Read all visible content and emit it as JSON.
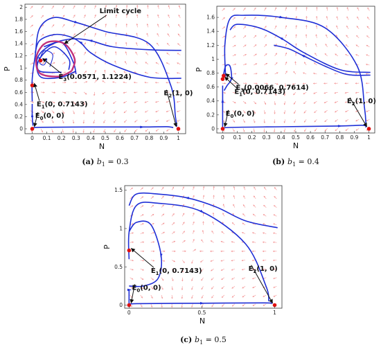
{
  "chart_data": [
    {
      "type": "phase-portrait",
      "caption": {
        "label": "(a)",
        "param": "b",
        "param_sub": "1",
        "value": "= 0.3"
      },
      "xlabel": "N",
      "ylabel": "P",
      "xlim": [
        -0.05,
        1.05
      ],
      "ylim": [
        -0.08,
        2.05
      ],
      "xticks": [
        "0",
        "0.1",
        "0.2",
        "0.3",
        "0.4",
        "0.5",
        "0.6",
        "0.7",
        "0.8",
        "0.9",
        "1"
      ],
      "xtick_values": [
        0,
        0.1,
        0.2,
        0.3,
        0.4,
        0.5,
        0.6,
        0.7,
        0.8,
        0.9,
        1.0
      ],
      "yticks": [
        "0",
        "0.2",
        "0.4",
        "0.6",
        "0.8",
        "1",
        "1.2",
        "1.4",
        "1.6",
        "1.8",
        "2"
      ],
      "ytick_values": [
        0,
        0.2,
        0.4,
        0.6,
        0.8,
        1.0,
        1.2,
        1.4,
        1.6,
        1.8,
        2.0
      ],
      "equilibria": [
        {
          "name": "E",
          "sub": "0",
          "coords": "(0, 0)",
          "x": 0,
          "y": 0
        },
        {
          "name": "E",
          "sub": "1",
          "coords": "(0, 0.7143)",
          "x": 0,
          "y": 0.7143
        },
        {
          "name": "E",
          "sub": "2",
          "coords": "(1, 0)",
          "x": 1,
          "y": 0
        },
        {
          "name": "E",
          "sub": "3",
          "coords": "(0.0571, 1.1224)",
          "x": 0.0571,
          "y": 1.1224
        }
      ],
      "limit_cycle_label": "Limit cycle",
      "trajectory_color": "#1f2fd6",
      "field_color": "#f28080",
      "cycle_color": "#c0307a",
      "point_color": "#e01010"
    },
    {
      "type": "phase-portrait",
      "caption": {
        "label": "(b)",
        "param": "b",
        "param_sub": "1",
        "value": "= 0.4"
      },
      "xlabel": "N",
      "ylabel": "P",
      "xlim": [
        -0.04,
        1.04
      ],
      "ylim": [
        -0.06,
        1.76
      ],
      "xticks": [
        "0",
        "0.1",
        "0.2",
        "0.3",
        "0.4",
        "0.5",
        "0.6",
        "0.7",
        "0.8",
        "0.9",
        "1"
      ],
      "xtick_values": [
        0,
        0.1,
        0.2,
        0.3,
        0.4,
        0.5,
        0.6,
        0.7,
        0.8,
        0.9,
        1.0
      ],
      "yticks": [
        "0",
        "0.2",
        "0.4",
        "0.6",
        "0.8",
        "1",
        "1.2",
        "1.4",
        "1.6"
      ],
      "ytick_values": [
        0,
        0.2,
        0.4,
        0.6,
        0.8,
        1.0,
        1.2,
        1.4,
        1.6
      ],
      "equilibria": [
        {
          "name": "E",
          "sub": "0",
          "coords": "(0, 0)",
          "x": 0,
          "y": 0
        },
        {
          "name": "E",
          "sub": "1",
          "coords": "(0, 0.7143)",
          "x": 0,
          "y": 0.7143
        },
        {
          "name": "E",
          "sub": "2",
          "coords": "(1, 0)",
          "x": 1,
          "y": 0
        },
        {
          "name": "E",
          "sub": "3",
          "coords": "(0.0066, 0.7614)",
          "x": 0.0066,
          "y": 0.7614
        }
      ]
    },
    {
      "type": "phase-portrait",
      "caption": {
        "label": "(c)",
        "param": "b",
        "param_sub": "1",
        "value": "= 0.5"
      },
      "xlabel": "N",
      "ylabel": "P",
      "xlim": [
        -0.03,
        1.05
      ],
      "ylim": [
        -0.04,
        1.56
      ],
      "xticks": [
        "0",
        "0.5",
        "1"
      ],
      "xtick_values": [
        0,
        0.5,
        1.0
      ],
      "yticks": [
        "0",
        "0.5",
        "1",
        "1.5"
      ],
      "ytick_values": [
        0,
        0.5,
        1.0,
        1.5
      ],
      "equilibria": [
        {
          "name": "E",
          "sub": "0",
          "coords": "(0, 0)",
          "x": 0,
          "y": 0
        },
        {
          "name": "E",
          "sub": "1",
          "coords": "(0, 0.7143)",
          "x": 0,
          "y": 0.7143
        },
        {
          "name": "E",
          "sub": "2",
          "coords": "(1, 0)",
          "x": 1,
          "y": 0
        }
      ]
    }
  ]
}
